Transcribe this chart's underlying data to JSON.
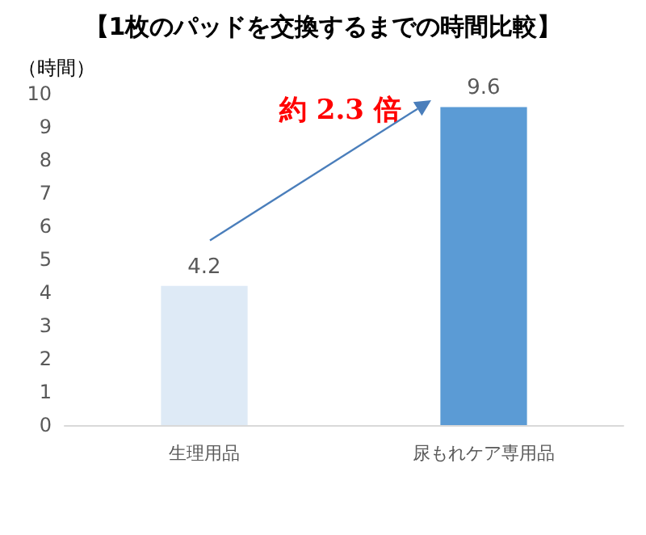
{
  "chart_data": {
    "type": "bar",
    "title": "【1枚のパッドを交換するまでの時間比較】",
    "ylabel": "（時間）",
    "categories": [
      "生理用品",
      "尿もれケア専用品"
    ],
    "values": [
      4.2,
      9.6
    ],
    "colors": [
      "#deeaf6",
      "#5b9bd5"
    ],
    "ylim": [
      0,
      10
    ],
    "yticks": [
      0,
      1,
      2,
      3,
      4,
      5,
      6,
      7,
      8,
      9,
      10
    ],
    "data_labels": true,
    "grid": false,
    "annotations": [
      "約 2.3 倍"
    ]
  }
}
